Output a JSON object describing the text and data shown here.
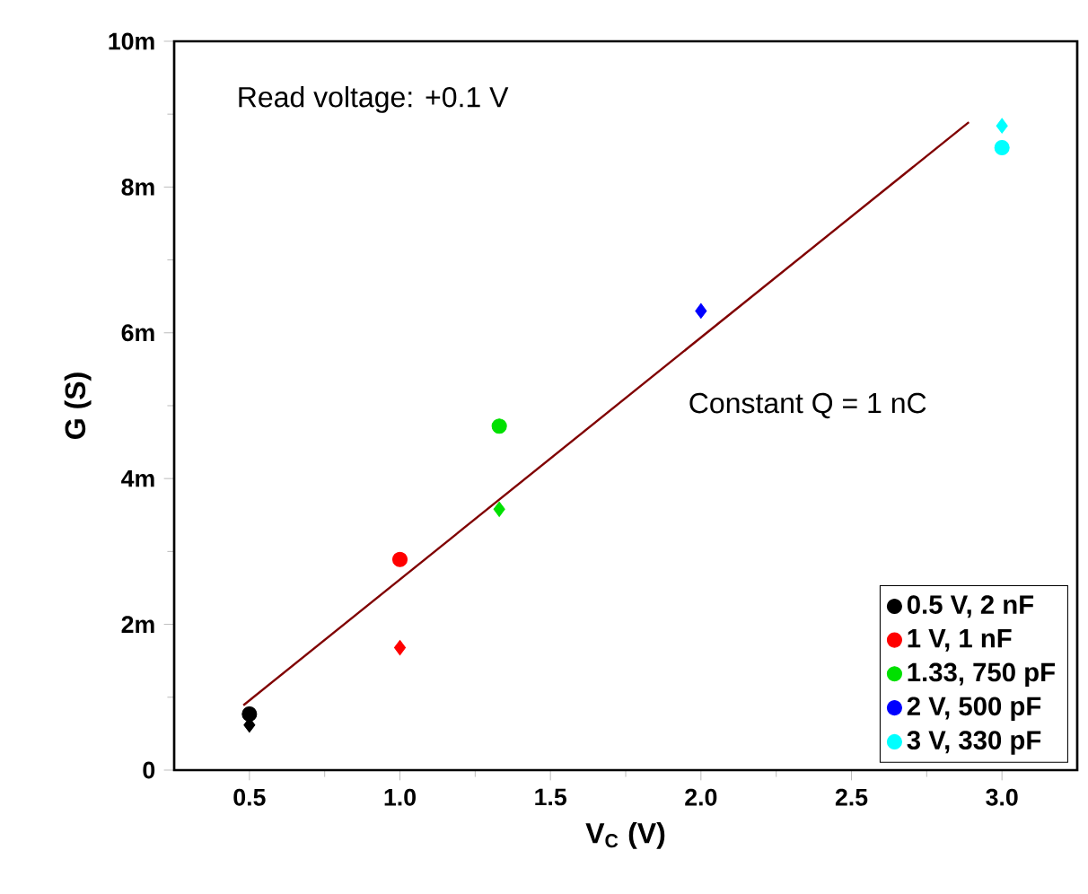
{
  "chart_data": {
    "type": "scatter",
    "xlabel": "V$_{C}$ (V)",
    "ylabel": "G (S)",
    "xlim": [
      0.25,
      3.25
    ],
    "xticks": [
      0.5,
      {
        "value": 1.0,
        "label": "1.0"
      },
      1.5,
      {
        "value": 2.0,
        "label": "2.0"
      },
      2.5,
      {
        "value": 3.0,
        "label": "3.0"
      }
    ],
    "ylim": [
      0,
      10
    ],
    "yticks": [
      0,
      {
        "value": 2,
        "label": "2m"
      },
      {
        "value": 4,
        "label": "4m"
      },
      {
        "value": 6,
        "label": "6m"
      },
      {
        "value": 8,
        "label": "8m"
      },
      {
        "value": 10,
        "label": "10m"
      }
    ],
    "legend": "bottom right",
    "grid": false,
    "annotations": [
      "Read voltage: +0.1 V",
      "Constant Q  = 1 nC"
    ],
    "series": [
      {
        "name": "0.5 V, 2 nF",
        "color": "#000000",
        "marker": "circle",
        "x": [
          0.5
        ],
        "values": [
          0.77
        ]
      },
      {
        "name": "1 V, 1 nF",
        "color": "#ff0000",
        "marker": "circle",
        "x": [
          1.0
        ],
        "values": [
          2.89
        ]
      },
      {
        "name": "1.33, 750 pF",
        "color": "#00e000",
        "marker": "circle",
        "x": [
          1.33
        ],
        "values": [
          4.72
        ]
      },
      {
        "name": "2 V, 500 pF",
        "color": "#0000ff",
        "marker": "circle"
      },
      {
        "name": "3 V, 330 pF",
        "color": "#00ffff",
        "marker": "circle",
        "x": [
          3.0
        ],
        "values": [
          8.54
        ]
      },
      {
        "color": "#000000",
        "marker": "diamond",
        "x": [
          0.5
        ],
        "values": [
          0.62
        ]
      },
      {
        "color": "#ff0000",
        "marker": "diamond",
        "x": [
          1.0
        ],
        "values": [
          1.68
        ]
      },
      {
        "color": "#00e000",
        "marker": "diamond",
        "x": [
          1.33
        ],
        "values": [
          3.58
        ]
      },
      {
        "color": "#0000ff",
        "marker": "diamond",
        "x": [
          2.0
        ],
        "values": [
          6.3
        ]
      },
      {
        "color": "#00ffff",
        "marker": "diamond",
        "x": [
          3.0
        ],
        "values": [
          8.84
        ]
      },
      {
        "type": "line",
        "color": "#800000",
        "x": [
          0.48,
          2.89
        ],
        "values": [
          0.89,
          8.89
        ]
      }
    ]
  }
}
